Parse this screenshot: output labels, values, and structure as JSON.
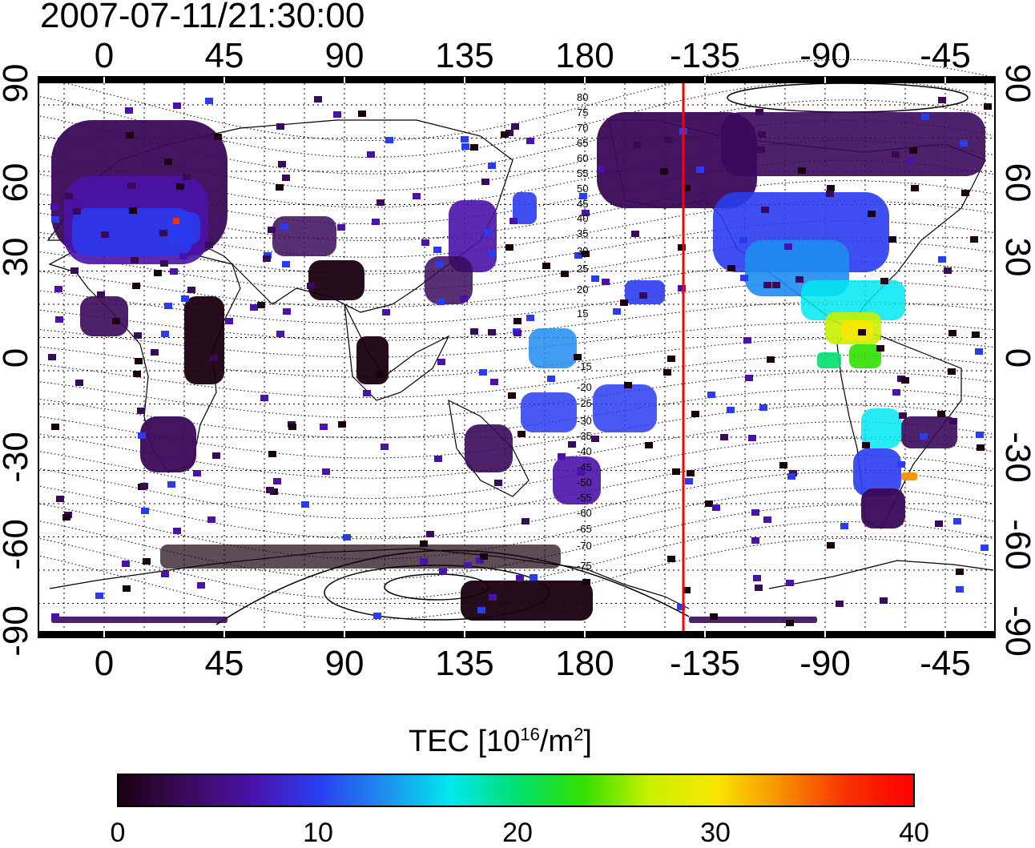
{
  "title": "2007-07-11/21:30:00",
  "map": {
    "lon_ticks": [
      "0",
      "45",
      "90",
      "135",
      "180",
      "-135",
      "-90",
      "-45"
    ],
    "lat_ticks_left": [
      "90",
      "60",
      "30",
      "0",
      "-30",
      "-60",
      "-90"
    ],
    "lat_ticks_right": [
      "90",
      "60",
      "30",
      "0",
      "-30",
      "-60",
      "-90"
    ],
    "contour_labels": [
      "80",
      "75",
      "70",
      "65",
      "60",
      "55",
      "50",
      "45",
      "40",
      "35",
      "30",
      "25",
      "20",
      "15",
      "-15",
      "-20",
      "-25",
      "-30",
      "-35",
      "-40",
      "-45",
      "-50",
      "-55",
      "-60",
      "-65",
      "-70",
      "-75"
    ],
    "red_line_color": "#ff0000"
  },
  "colorbar": {
    "title_prefix": "TEC  [10",
    "title_sup1": "16",
    "title_mid": "/m",
    "title_sup2": "2",
    "title_suffix": "]",
    "ticks": [
      "0",
      "10",
      "20",
      "30",
      "40"
    ],
    "colors": [
      "#1a0010",
      "#3a0a5a",
      "#4a12a8",
      "#2a3cf0",
      "#1e8cf0",
      "#00e8f0",
      "#00e070",
      "#30e000",
      "#c8f000",
      "#f8e800",
      "#f89000",
      "#f83000",
      "#ff0000"
    ]
  }
}
